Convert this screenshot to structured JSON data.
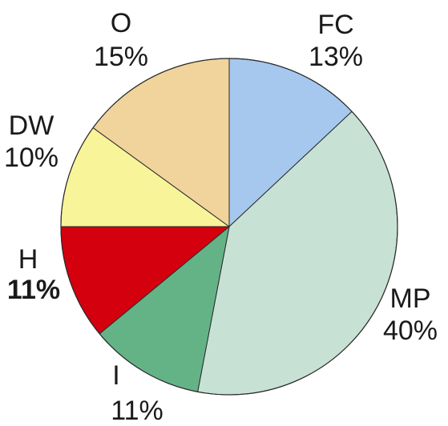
{
  "chart_data": {
    "type": "pie",
    "start_angle_deg": 0,
    "direction": "clockwise",
    "slices": [
      {
        "name": "FC",
        "label": "FC",
        "pct_label": "13%",
        "value": 13,
        "color": "#a6c8ef",
        "bold": false
      },
      {
        "name": "MP",
        "label": "MP",
        "pct_label": "40%",
        "value": 40,
        "color": "#c7e2d5",
        "bold": false
      },
      {
        "name": "I",
        "label": "I",
        "pct_label": "11%",
        "value": 11,
        "color": "#64b387",
        "bold": false
      },
      {
        "name": "H",
        "label": "H",
        "pct_label": "11%",
        "value": 11,
        "color": "#d4000e",
        "bold": true
      },
      {
        "name": "DW",
        "label": "DW",
        "pct_label": "10%",
        "value": 10,
        "color": "#f8f49a",
        "bold": false
      },
      {
        "name": "O",
        "label": "O",
        "pct_label": "15%",
        "value": 15,
        "color": "#f0d49b",
        "bold": false
      }
    ],
    "title": "",
    "legend": "none"
  }
}
